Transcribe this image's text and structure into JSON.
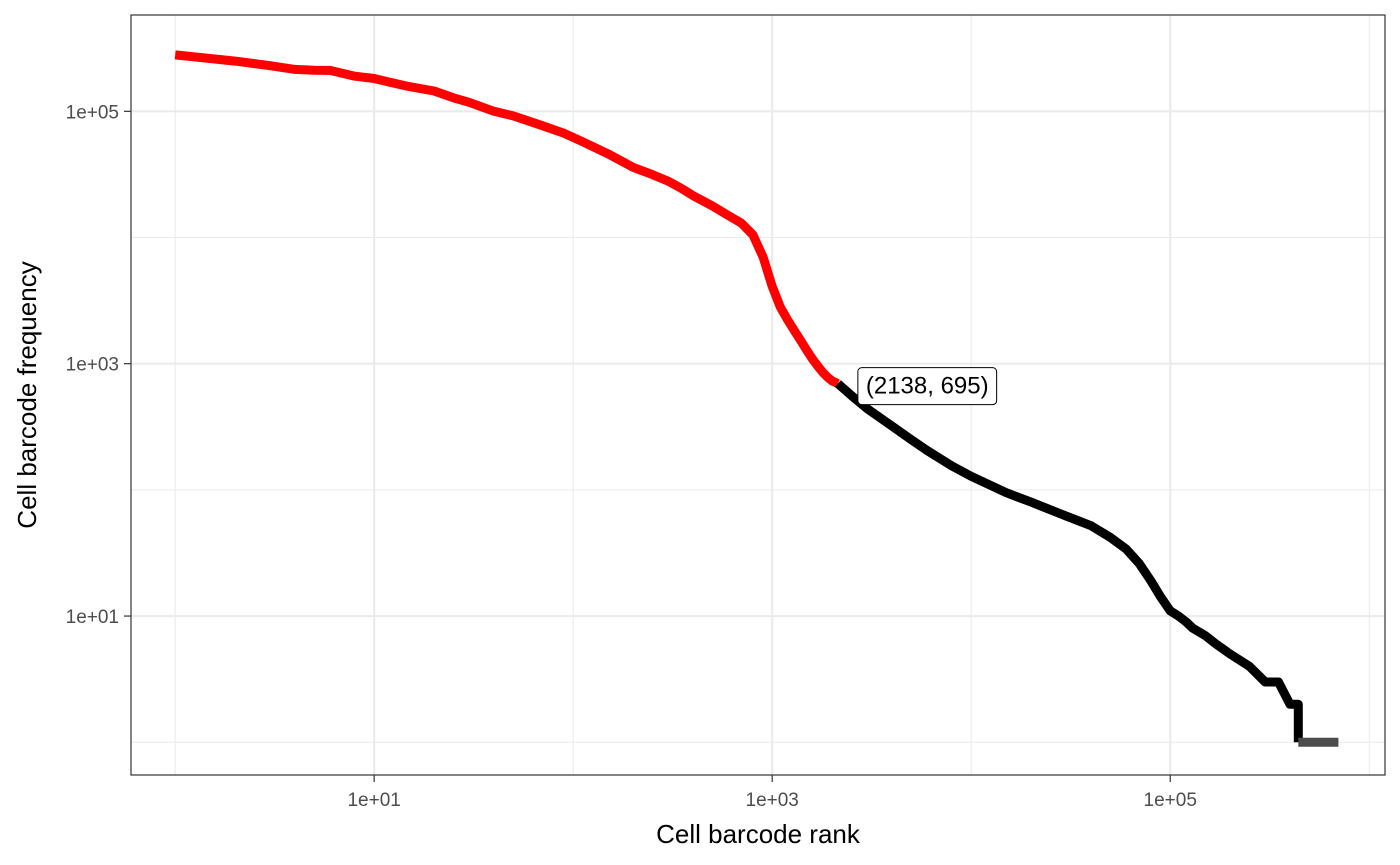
{
  "chart_data": {
    "type": "line",
    "title": "",
    "xlabel": "Cell barcode rank",
    "ylabel": "Cell barcode frequency",
    "x_scale": "log10",
    "y_scale": "log10",
    "xlim": [
      0.6,
      1200000
    ],
    "ylim": [
      0.55,
      580000
    ],
    "x_ticks": [
      {
        "value": 10,
        "label": "1e+01"
      },
      {
        "value": 1000,
        "label": "1e+03"
      },
      {
        "value": 100000,
        "label": "1e+05"
      }
    ],
    "y_ticks": [
      {
        "value": 10,
        "label": "1e+01"
      },
      {
        "value": 1000,
        "label": "1e+03"
      },
      {
        "value": 100000,
        "label": "1e+05"
      }
    ],
    "grid": true,
    "legend": "none",
    "colors": {
      "cells": "#ff0000",
      "background": "#000000",
      "tail": "#4d4d4d",
      "grid": "#ebebeb",
      "panel_border": "#333333"
    },
    "series": [
      {
        "color": "#ff0000",
        "x": [
          1,
          2,
          3,
          4,
          5,
          6,
          8,
          10,
          12,
          15,
          20,
          25,
          30,
          40,
          50,
          70,
          90,
          110,
          150,
          200,
          250,
          300,
          350,
          400,
          500,
          600,
          700,
          800,
          900,
          1000,
          1100,
          1200,
          1300,
          1400,
          1500,
          1600,
          1700,
          1800,
          1900,
          2000,
          2138
        ],
        "y": [
          280000,
          250000,
          230000,
          215000,
          212000,
          211000,
          190000,
          182000,
          170000,
          157000,
          145000,
          128000,
          118000,
          100000,
          92000,
          77000,
          67000,
          58000,
          46000,
          36000,
          31500,
          28000,
          24500,
          21500,
          17800,
          15000,
          13000,
          10500,
          7000,
          4100,
          2800,
          2200,
          1800,
          1500,
          1260,
          1080,
          950,
          850,
          780,
          730,
          695
        ]
      },
      {
        "color": "#000000",
        "x": [
          2138,
          2500,
          3000,
          4000,
          5000,
          6000,
          8000,
          10000,
          15000,
          20000,
          30000,
          40000,
          50000,
          60000,
          70000,
          80000,
          90000,
          100000,
          110000,
          120000,
          130000,
          150000,
          170000,
          200000,
          250000,
          300000,
          350000,
          400000,
          440000,
          440000
        ],
        "y": [
          695,
          560,
          440,
          320,
          250,
          205,
          155,
          128,
          95,
          80,
          62,
          52,
          42,
          34,
          26,
          19,
          14,
          11,
          10,
          9,
          8,
          7,
          6,
          5,
          4,
          3,
          3,
          2,
          2,
          1
        ]
      },
      {
        "color": "#4d4d4d",
        "x": [
          440000,
          700000
        ],
        "y": [
          1,
          1
        ]
      }
    ],
    "annotations": [
      {
        "text": "(2138, 695)",
        "x": 2138,
        "y": 695
      }
    ]
  }
}
